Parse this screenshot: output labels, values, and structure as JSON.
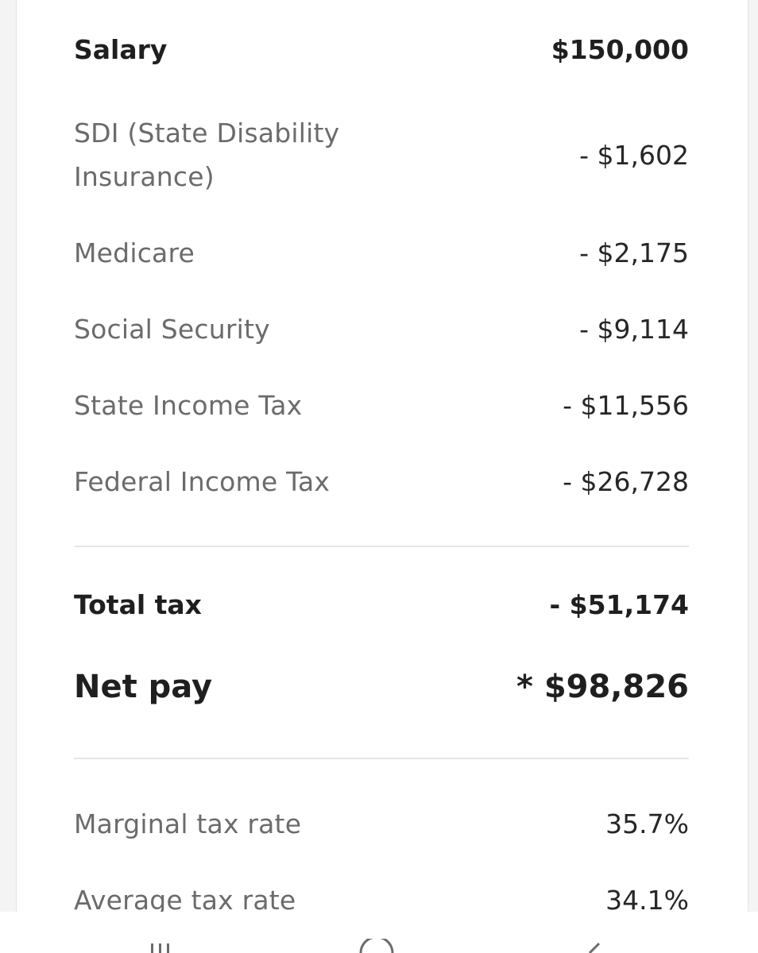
{
  "rows": {
    "salary": {
      "label": "Salary",
      "value": "$150,000"
    },
    "sdi": {
      "label": "SDI (State Disability Insurance)",
      "value": "- $1,602"
    },
    "medicare": {
      "label": "Medicare",
      "value": "- $2,175"
    },
    "social_security": {
      "label": "Social Security",
      "value": "- $9,114"
    },
    "state_tax": {
      "label": "State Income Tax",
      "value": "- $11,556"
    },
    "federal_tax": {
      "label": "Federal Income Tax",
      "value": "- $26,728"
    },
    "total_tax": {
      "label": "Total tax",
      "value": "- $51,174"
    },
    "net_pay": {
      "label": "Net pay",
      "value": "* $98,826"
    },
    "marginal_rate": {
      "label": "Marginal tax rate",
      "value": "35.7%"
    },
    "average_rate": {
      "label": "Average tax rate",
      "value": "34.1%"
    }
  },
  "nav": {
    "icons": [
      "recent-apps-icon",
      "home-icon",
      "back-icon"
    ]
  }
}
